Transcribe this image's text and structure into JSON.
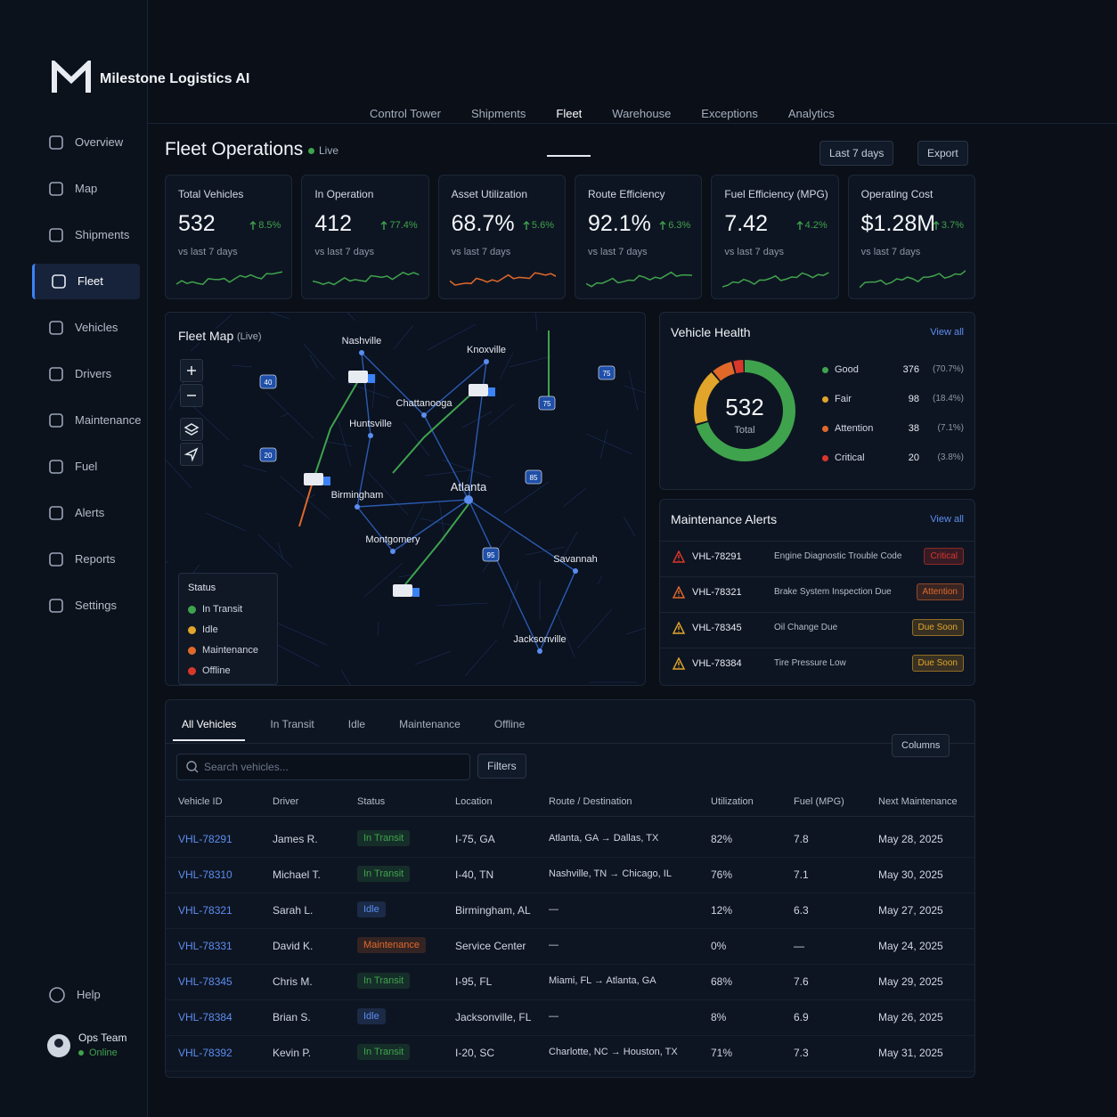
{
  "brand": {
    "name": "Milestone Logistics AI"
  },
  "top_nav": [
    "Control Tower",
    "Shipments",
    "Fleet",
    "Warehouse",
    "Exceptions",
    "Analytics"
  ],
  "sidebar": {
    "items": [
      "Overview",
      "Map",
      "Shipments",
      "Fleet",
      "Vehicles",
      "Drivers",
      "Maintenance",
      "Fuel",
      "Alerts",
      "Reports",
      "Settings"
    ],
    "help": "Help",
    "user": "Ops Team",
    "user_status": "Online"
  },
  "header": {
    "title": "Fleet Operations",
    "status": "Live",
    "date_range": "Last 7 days",
    "export": "Export"
  },
  "kpis": [
    {
      "label": "Total Vehicles",
      "value": "532",
      "change": "8.5%",
      "note": "vs last 7 days"
    },
    {
      "label": "In Operation",
      "value": "412",
      "change": "77.4%",
      "note": "vs last 7 days"
    },
    {
      "label": "Asset Utilization",
      "value": "68.7%",
      "change": "5.6%",
      "note": "vs last 7 days"
    },
    {
      "label": "Route Efficiency",
      "value": "92.1%",
      "change": "6.3%",
      "note": "vs last 7 days"
    },
    {
      "label": "Fuel Efficiency (MPG)",
      "value": "7.42",
      "change": "4.2%",
      "note": "vs last 7 days"
    },
    {
      "label": "Operating Cost",
      "value": "$1.28M",
      "change": "3.7%",
      "note": "vs last 7 days"
    }
  ],
  "map": {
    "title": "Fleet Map",
    "subtitle": "(Live)",
    "cities": [
      "Nashville",
      "Knoxville",
      "Chattanooga",
      "Huntsville",
      "Atlanta",
      "Birmingham",
      "Montgomery",
      "Savannah",
      "Jacksonville"
    ],
    "highways": [
      "40",
      "75",
      "75",
      "20",
      "85",
      "95"
    ],
    "legend": {
      "title": "Status",
      "items": [
        {
          "name": "In Transit",
          "color": "#3fa34d"
        },
        {
          "name": "Idle",
          "color": "#e0a52a"
        },
        {
          "name": "Maintenance",
          "color": "#e0692a"
        },
        {
          "name": "Offline",
          "color": "#d9372b"
        }
      ]
    }
  },
  "health": {
    "title": "Vehicle Health",
    "link": "View all",
    "total": 532,
    "total_label": "Total",
    "items": [
      {
        "name": "Good",
        "count": 376,
        "pct": "(70.7%)",
        "color": "#3fa34d"
      },
      {
        "name": "Fair",
        "count": 98,
        "pct": "(18.4%)",
        "color": "#e0a52a"
      },
      {
        "name": "Attention",
        "count": 38,
        "pct": "(7.1%)",
        "color": "#e0692a"
      },
      {
        "name": "Critical",
        "count": 20,
        "pct": "(3.8%)",
        "color": "#d9372b"
      }
    ]
  },
  "alerts": {
    "title": "Maintenance Alerts",
    "link": "View all",
    "rows": [
      [
        "VHL-78291",
        "Engine Diagnostic Trouble Code",
        "Critical"
      ],
      [
        "VHL-78321",
        "Brake System Inspection Due",
        "Attention"
      ],
      [
        "VHL-78345",
        "Oil Change Due",
        "Due Soon"
      ],
      [
        "VHL-78384",
        "Tire Pressure Low",
        "Due Soon"
      ]
    ]
  },
  "table": {
    "tabs": [
      "All Vehicles",
      "In Transit",
      "Idle",
      "Maintenance",
      "Offline"
    ],
    "search": "Search vehicles...",
    "filters": "Filters",
    "columns": "Columns",
    "headers": [
      "Vehicle ID",
      "Driver",
      "Status",
      "Location",
      "Route / Destination",
      "Utilization",
      "Fuel (MPG)",
      "Next Maintenance"
    ],
    "rows": [
      [
        "VHL-78291",
        "James R.",
        "In Transit",
        "I-75, GA",
        "Atlanta, GA → Dallas, TX",
        "82%",
        "7.8",
        "May 28, 2025"
      ],
      [
        "VHL-78310",
        "Michael T.",
        "In Transit",
        "I-40, TN",
        "Nashville, TN → Chicago, IL",
        "76%",
        "7.1",
        "May 30, 2025"
      ],
      [
        "VHL-78321",
        "Sarah L.",
        "Idle",
        "Birmingham, AL",
        "—",
        "12%",
        "6.3",
        "May 27, 2025"
      ],
      [
        "VHL-78331",
        "David K.",
        "Maintenance",
        "Service Center",
        "—",
        "0%",
        "—",
        "May 24, 2025"
      ],
      [
        "VHL-78345",
        "Chris M.",
        "In Transit",
        "I-95, FL",
        "Miami, FL → Atlanta, GA",
        "68%",
        "7.6",
        "May 29, 2025"
      ],
      [
        "VHL-78384",
        "Brian S.",
        "Idle",
        "Jacksonville, FL",
        "—",
        "8%",
        "6.9",
        "May 26, 2025"
      ],
      [
        "VHL-78392",
        "Kevin P.",
        "In Transit",
        "I-20, SC",
        "Charlotte, NC → Houston, TX",
        "71%",
        "7.3",
        "May 31, 2025"
      ]
    ]
  }
}
